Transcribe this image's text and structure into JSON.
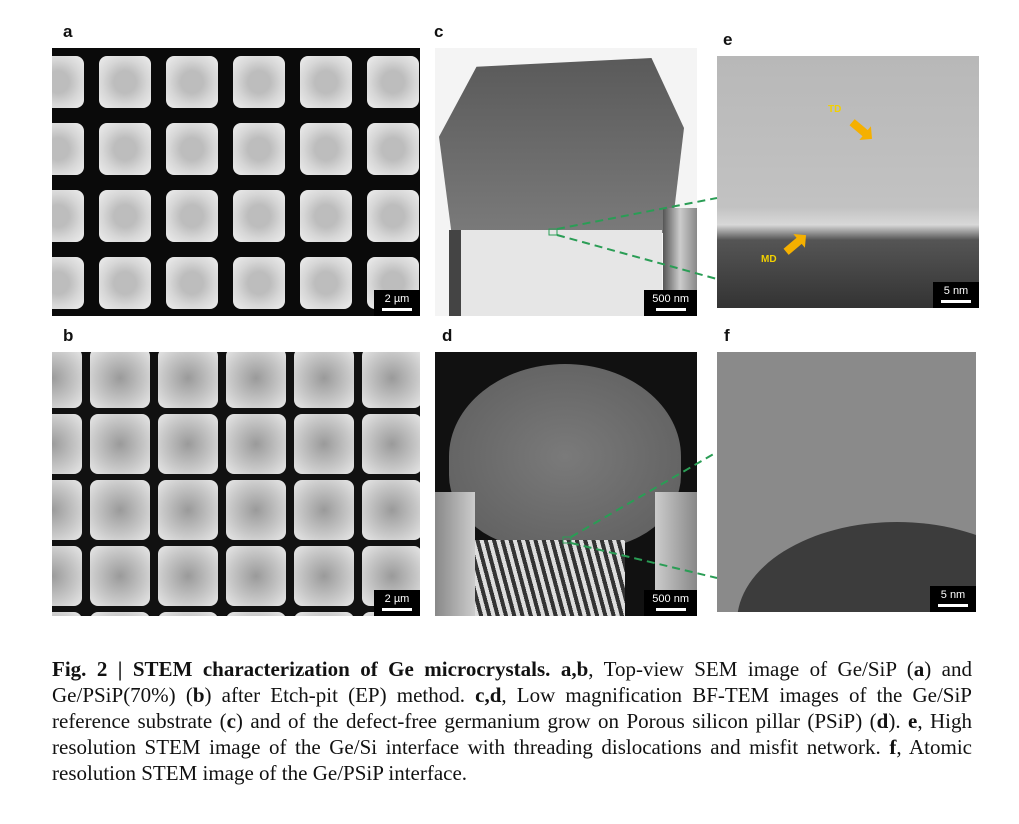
{
  "figure": {
    "panels": [
      {
        "label": "a",
        "scale_bar": "2 µm"
      },
      {
        "label": "b",
        "scale_bar": "2 µm"
      },
      {
        "label": "c",
        "scale_bar": "500 nm"
      },
      {
        "label": "d",
        "scale_bar": "500 nm"
      },
      {
        "label": "e",
        "scale_bar": "5 nm",
        "annotations": [
          "TD",
          "MD"
        ]
      },
      {
        "label": "f",
        "scale_bar": "5 nm"
      }
    ],
    "caption": {
      "fig_label": "Fig. 2 | STEM characterization of Ge microcrystals.",
      "p1_b": "a,b",
      "p1": ", Top-view SEM image of Ge/SiP (",
      "p2_b": "a",
      "p2": ") and Ge/PSiP(70%) (",
      "p3_b": "b",
      "p3": ") after Etch-pit (EP) method. ",
      "p4_b": "c,d",
      "p4": ", Low magnification BF-TEM images of the Ge/SiP reference substrate (",
      "p5_b": "c",
      "p5": ") and of the defect-free germanium grow on Porous silicon pillar (PSiP) (",
      "p6_b": "d",
      "p6": "). ",
      "p7_b": "e",
      "p7": ", High resolution STEM image of the Ge/Si interface with threading dislocations and misfit network. ",
      "p8_b": "f",
      "p8": ", Atomic resolution STEM image of the Ge/PSiP interface."
    },
    "colors": {
      "callout_lines": "#2a9d55",
      "arrows": "#f5b000",
      "annotation_text": "#f2d000"
    }
  }
}
